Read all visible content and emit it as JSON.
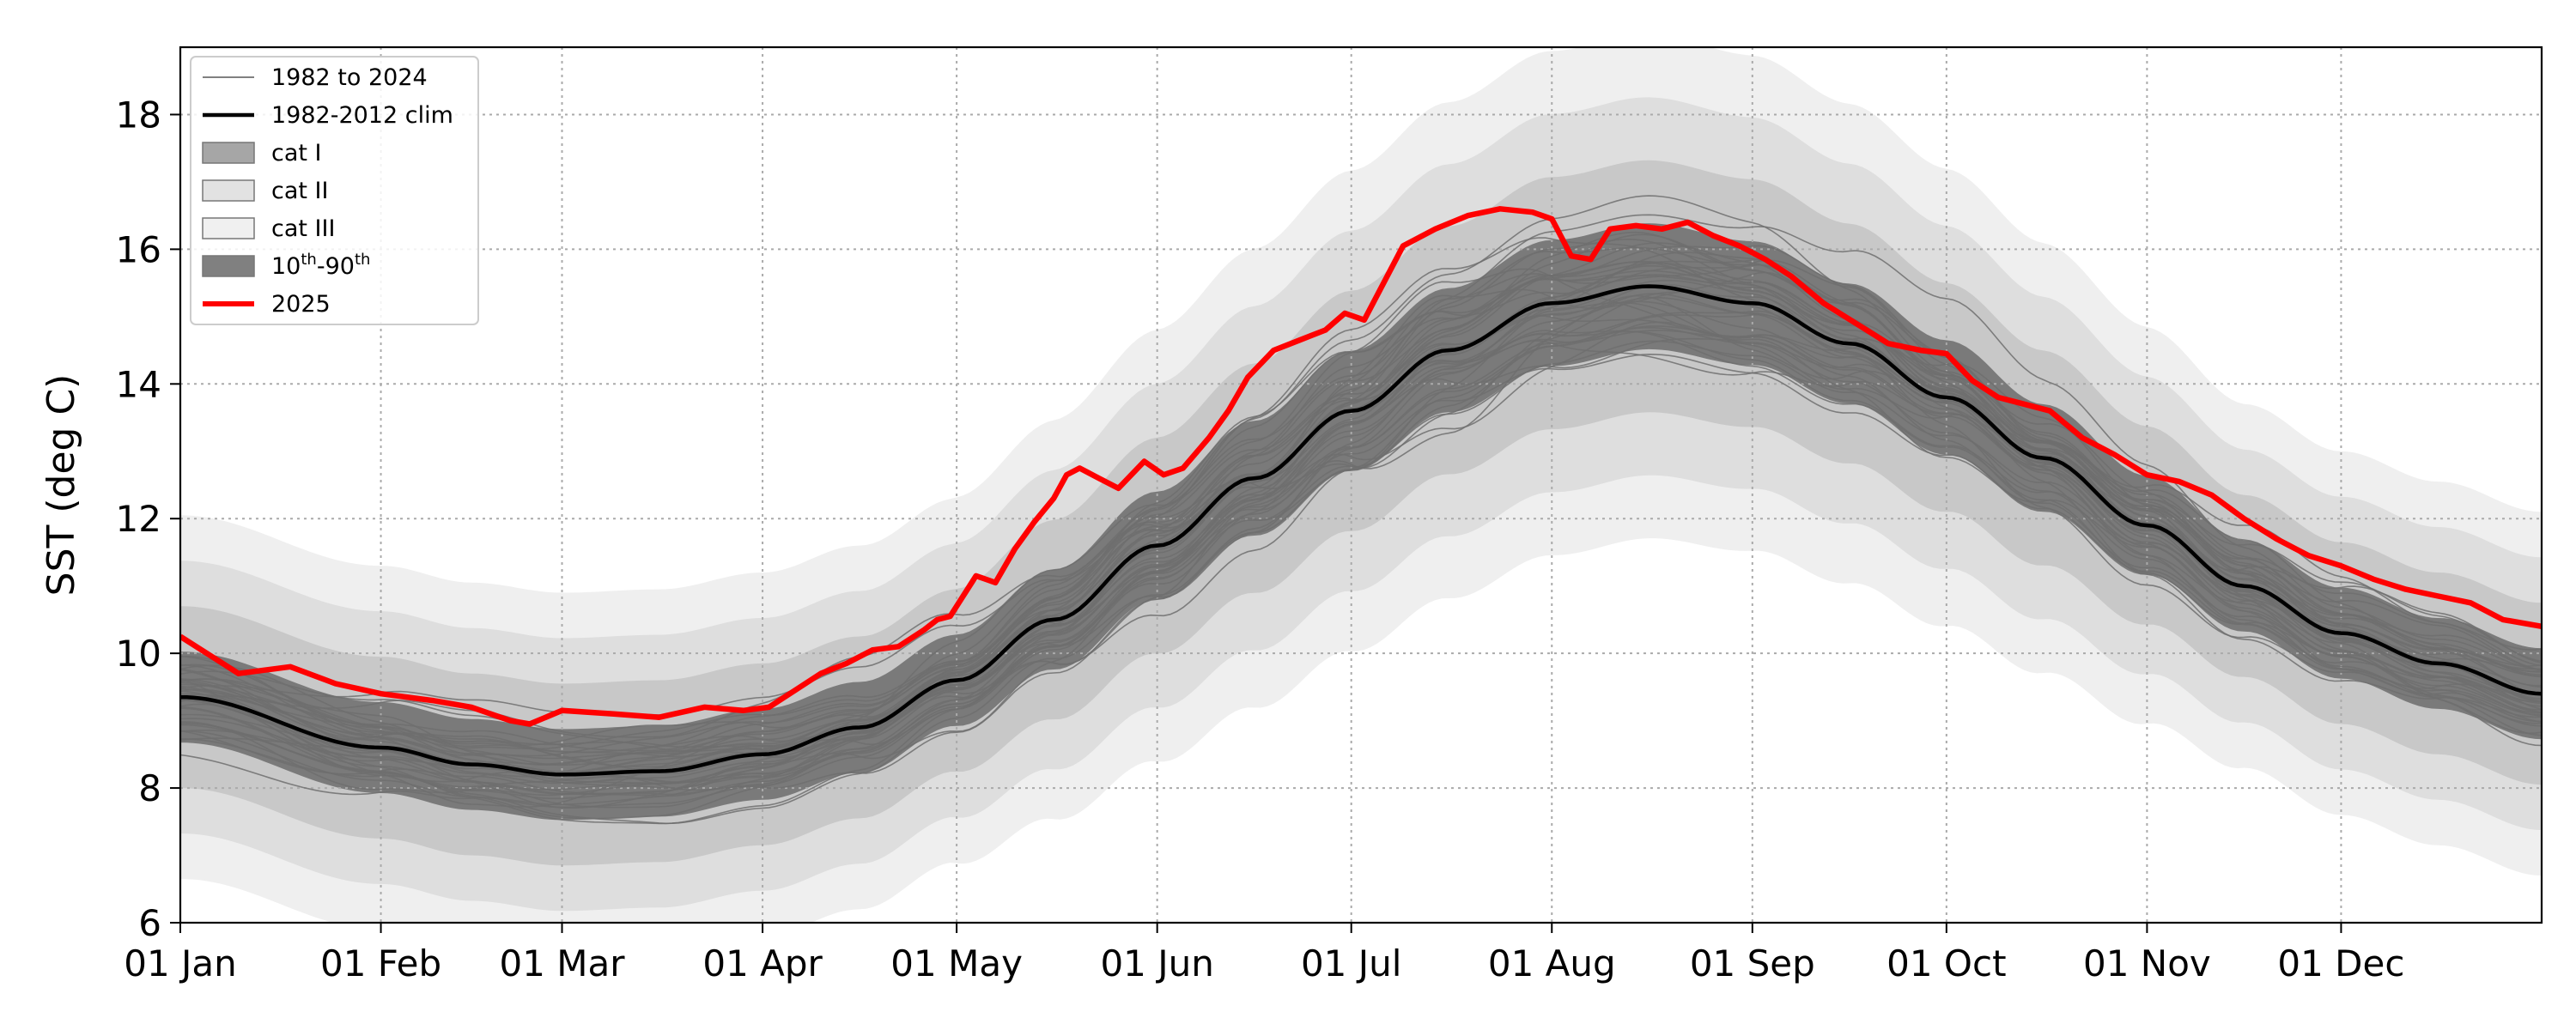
{
  "chart_data": {
    "type": "line",
    "title": "",
    "xlabel": "",
    "ylabel": "SST (deg C)",
    "ylim": [
      6,
      19
    ],
    "xlim_day_of_year": [
      1,
      366
    ],
    "yticks": [
      6,
      8,
      10,
      12,
      14,
      16,
      18
    ],
    "xticks": [
      {
        "label": "01 Jan",
        "doy": 1
      },
      {
        "label": "01 Feb",
        "doy": 32
      },
      {
        "label": "01 Mar",
        "doy": 60
      },
      {
        "label": "01 Apr",
        "doy": 91
      },
      {
        "label": "01 May",
        "doy": 121
      },
      {
        "label": "01 Jun",
        "doy": 152
      },
      {
        "label": "01 Jul",
        "doy": 182
      },
      {
        "label": "01 Aug",
        "doy": 213
      },
      {
        "label": "01 Sep",
        "doy": 244
      },
      {
        "label": "01 Oct",
        "doy": 274
      },
      {
        "label": "01 Nov",
        "doy": 305
      },
      {
        "label": "01 Dec",
        "doy": 335
      }
    ],
    "grid": true,
    "legend_position": "top-left",
    "legend": [
      {
        "label": "1982 to 2024",
        "kind": "thin-line",
        "color": "#6e6e6e"
      },
      {
        "label": "1982-2012 clim",
        "kind": "line",
        "color": "#000000"
      },
      {
        "label": "cat I",
        "kind": "patch",
        "color": "#a6a6a6"
      },
      {
        "label": "cat II",
        "kind": "patch",
        "color": "#e2e2e2"
      },
      {
        "label": "cat III",
        "kind": "patch",
        "color": "#f0f0f0"
      },
      {
        "label": "10",
        "sup1": "th",
        "mid": "-90",
        "sup2": "th",
        "kind": "patch",
        "color": "#808080"
      },
      {
        "label": "2025",
        "kind": "thick-line",
        "color": "#ff0000"
      }
    ],
    "colors": {
      "clim": "#000000",
      "year_2025": "#ff0000",
      "historical": "#6e6e6e",
      "p10_p90": "#7a7a7a",
      "cat1": "#c8c8c8",
      "cat2": "#dedede",
      "cat3": "#efefef"
    },
    "climatology": {
      "doy": [
        1,
        32,
        46,
        60,
        75,
        91,
        106,
        121,
        136,
        152,
        167,
        182,
        197,
        213,
        228,
        244,
        259,
        274,
        289,
        305,
        320,
        335,
        350,
        366
      ],
      "sst": [
        9.35,
        8.6,
        8.35,
        8.2,
        8.25,
        8.5,
        8.9,
        9.6,
        10.5,
        11.6,
        12.6,
        13.6,
        14.5,
        15.2,
        15.45,
        15.2,
        14.6,
        13.8,
        12.9,
        11.9,
        11.0,
        10.3,
        9.85,
        9.4
      ]
    },
    "percentile_band_halfwidth_10_90": 0.75,
    "category_threshold_offsets_above_90th": [
      1.0,
      2.0,
      3.0
    ],
    "series_2025": {
      "name": "2025",
      "doy": [
        1,
        10,
        18,
        25,
        32,
        40,
        46,
        52,
        55,
        60,
        68,
        75,
        82,
        88,
        92,
        96,
        100,
        104,
        108,
        112,
        116,
        118,
        120,
        124,
        127,
        130,
        133,
        136,
        138,
        140,
        143,
        146,
        150,
        153,
        156,
        160,
        163,
        166,
        170,
        174,
        178,
        181,
        184,
        187,
        190,
        195,
        200,
        205,
        210,
        213,
        216,
        219,
        222,
        226,
        230,
        234,
        238,
        242,
        246,
        250,
        255,
        260,
        265,
        270,
        274,
        278,
        282,
        286,
        290,
        295,
        300,
        305,
        310,
        315,
        320,
        325,
        330,
        335,
        340,
        345,
        350,
        355,
        360,
        366
      ],
      "sst": [
        10.25,
        9.7,
        9.8,
        9.55,
        9.4,
        9.3,
        9.2,
        9.0,
        8.95,
        9.15,
        9.1,
        9.05,
        9.2,
        9.15,
        9.2,
        9.45,
        9.7,
        9.85,
        10.05,
        10.1,
        10.35,
        10.5,
        10.55,
        11.15,
        11.05,
        11.55,
        11.95,
        12.3,
        12.65,
        12.75,
        12.6,
        12.45,
        12.85,
        12.65,
        12.75,
        13.2,
        13.6,
        14.1,
        14.5,
        14.65,
        14.8,
        15.05,
        14.95,
        15.5,
        16.05,
        16.3,
        16.5,
        16.6,
        16.55,
        16.45,
        15.9,
        15.85,
        16.3,
        16.35,
        16.3,
        16.4,
        16.2,
        16.05,
        15.85,
        15.6,
        15.2,
        14.9,
        14.6,
        14.5,
        14.45,
        14.05,
        13.8,
        13.7,
        13.6,
        13.2,
        12.95,
        12.65,
        12.55,
        12.35,
        12.0,
        11.7,
        11.45,
        11.3,
        11.1,
        10.95,
        10.85,
        10.75,
        10.5,
        10.4
      ]
    },
    "historical_years": {
      "name": "1982 to 2024",
      "first_year": 1982,
      "last_year": 2024,
      "count": 43
    }
  }
}
